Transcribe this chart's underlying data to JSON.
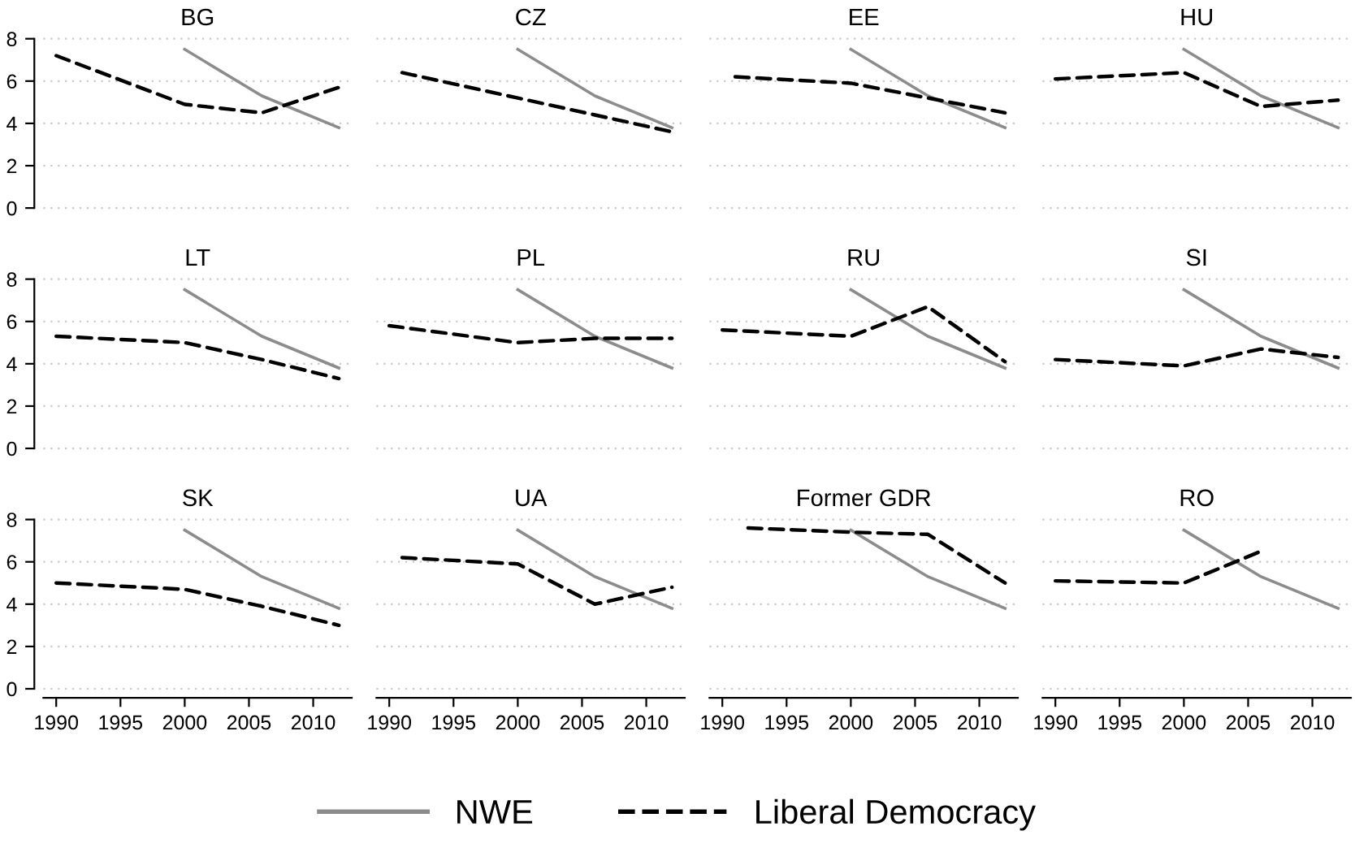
{
  "chart_data": [
    {
      "type": "line",
      "title": "BG",
      "xlim": [
        1989,
        2013
      ],
      "xticks": [
        1990,
        1995,
        2000,
        2005,
        2010
      ],
      "ylim": [
        0,
        8
      ],
      "yticks": [
        0,
        2,
        4,
        6,
        8
      ],
      "grid": "y",
      "tick_labels": "y",
      "legend": "bottom",
      "series": [
        {
          "name": "NWE",
          "color": "#8c8c8c",
          "line_style": "solid",
          "x": [
            2000,
            2006,
            2012
          ],
          "values": [
            7.5,
            5.3,
            3.8
          ]
        },
        {
          "name": "Liberal Democracy",
          "color": "#000000",
          "line_style": "dashed",
          "x": [
            1990,
            2000,
            2006,
            2012
          ],
          "values": [
            7.2,
            4.9,
            4.5,
            5.7
          ]
        }
      ]
    },
    {
      "type": "line",
      "title": "CZ",
      "xlim": [
        1989,
        2013
      ],
      "xticks": [
        1990,
        1995,
        2000,
        2005,
        2010
      ],
      "ylim": [
        0,
        8
      ],
      "yticks": [
        0,
        2,
        4,
        6,
        8
      ],
      "grid": "y",
      "tick_labels": false,
      "series": [
        {
          "color": "#8c8c8c",
          "line_style": "solid",
          "x": [
            2000,
            2006,
            2012
          ],
          "values": [
            7.5,
            5.3,
            3.8
          ]
        },
        {
          "color": "#000000",
          "line_style": "dashed",
          "x": [
            1991,
            2000,
            2006,
            2012
          ],
          "values": [
            6.4,
            5.2,
            4.4,
            3.6
          ]
        }
      ]
    },
    {
      "type": "line",
      "title": "EE",
      "xlim": [
        1989,
        2013
      ],
      "xticks": [
        1990,
        1995,
        2000,
        2005,
        2010
      ],
      "ylim": [
        0,
        8
      ],
      "yticks": [
        0,
        2,
        4,
        6,
        8
      ],
      "grid": "y",
      "tick_labels": false,
      "series": [
        {
          "color": "#8c8c8c",
          "line_style": "solid",
          "x": [
            2000,
            2006,
            2012
          ],
          "values": [
            7.5,
            5.3,
            3.8
          ]
        },
        {
          "color": "#000000",
          "line_style": "dashed",
          "x": [
            1991,
            2000,
            2006,
            2012
          ],
          "values": [
            6.2,
            5.9,
            5.2,
            4.5
          ]
        }
      ]
    },
    {
      "type": "line",
      "title": "HU",
      "xlim": [
        1989,
        2013
      ],
      "xticks": [
        1990,
        1995,
        2000,
        2005,
        2010
      ],
      "ylim": [
        0,
        8
      ],
      "yticks": [
        0,
        2,
        4,
        6,
        8
      ],
      "grid": "y",
      "tick_labels": false,
      "series": [
        {
          "color": "#8c8c8c",
          "line_style": "solid",
          "x": [
            2000,
            2006,
            2012
          ],
          "values": [
            7.5,
            5.3,
            3.8
          ]
        },
        {
          "color": "#000000",
          "line_style": "dashed",
          "x": [
            1990,
            2000,
            2006,
            2012
          ],
          "values": [
            6.1,
            6.4,
            4.8,
            5.1
          ]
        }
      ]
    },
    {
      "type": "line",
      "title": "LT",
      "xlim": [
        1989,
        2013
      ],
      "xticks": [
        1990,
        1995,
        2000,
        2005,
        2010
      ],
      "ylim": [
        0,
        8
      ],
      "yticks": [
        0,
        2,
        4,
        6,
        8
      ],
      "grid": "y",
      "tick_labels": "y",
      "series": [
        {
          "color": "#8c8c8c",
          "line_style": "solid",
          "x": [
            2000,
            2006,
            2012
          ],
          "values": [
            7.5,
            5.3,
            3.8
          ]
        },
        {
          "color": "#000000",
          "line_style": "dashed",
          "x": [
            1990,
            2000,
            2006,
            2012
          ],
          "values": [
            5.3,
            5.0,
            4.2,
            3.3
          ]
        }
      ]
    },
    {
      "type": "line",
      "title": "PL",
      "xlim": [
        1989,
        2013
      ],
      "xticks": [
        1990,
        1995,
        2000,
        2005,
        2010
      ],
      "ylim": [
        0,
        8
      ],
      "yticks": [
        0,
        2,
        4,
        6,
        8
      ],
      "grid": "y",
      "tick_labels": false,
      "series": [
        {
          "color": "#8c8c8c",
          "line_style": "solid",
          "x": [
            2000,
            2006,
            2012
          ],
          "values": [
            7.5,
            5.3,
            3.8
          ]
        },
        {
          "color": "#000000",
          "line_style": "dashed",
          "x": [
            1990,
            2000,
            2006,
            2012
          ],
          "values": [
            5.8,
            5.0,
            5.2,
            5.2
          ]
        }
      ]
    },
    {
      "type": "line",
      "title": "RU",
      "xlim": [
        1989,
        2013
      ],
      "xticks": [
        1990,
        1995,
        2000,
        2005,
        2010
      ],
      "ylim": [
        0,
        8
      ],
      "yticks": [
        0,
        2,
        4,
        6,
        8
      ],
      "grid": "y",
      "tick_labels": false,
      "series": [
        {
          "color": "#8c8c8c",
          "line_style": "solid",
          "x": [
            2000,
            2006,
            2012
          ],
          "values": [
            7.5,
            5.3,
            3.8
          ]
        },
        {
          "color": "#000000",
          "line_style": "dashed",
          "x": [
            1990,
            2000,
            2006,
            2012
          ],
          "values": [
            5.6,
            5.3,
            6.7,
            4.1
          ]
        }
      ]
    },
    {
      "type": "line",
      "title": "SI",
      "xlim": [
        1989,
        2013
      ],
      "xticks": [
        1990,
        1995,
        2000,
        2005,
        2010
      ],
      "ylim": [
        0,
        8
      ],
      "yticks": [
        0,
        2,
        4,
        6,
        8
      ],
      "grid": "y",
      "tick_labels": false,
      "series": [
        {
          "color": "#8c8c8c",
          "line_style": "solid",
          "x": [
            2000,
            2006,
            2012
          ],
          "values": [
            7.5,
            5.3,
            3.8
          ]
        },
        {
          "color": "#000000",
          "line_style": "dashed",
          "x": [
            1990,
            2000,
            2006,
            2012
          ],
          "values": [
            4.2,
            3.9,
            4.7,
            4.3
          ]
        }
      ]
    },
    {
      "type": "line",
      "title": "SK",
      "xlim": [
        1989,
        2013
      ],
      "xticks": [
        1990,
        1995,
        2000,
        2005,
        2010
      ],
      "ylim": [
        0,
        8
      ],
      "yticks": [
        0,
        2,
        4,
        6,
        8
      ],
      "grid": "y",
      "series": [
        {
          "color": "#8c8c8c",
          "line_style": "solid",
          "x": [
            2000,
            2006,
            2012
          ],
          "values": [
            7.5,
            5.3,
            3.8
          ]
        },
        {
          "color": "#000000",
          "line_style": "dashed",
          "x": [
            1990,
            2000,
            2006,
            2012
          ],
          "values": [
            5.0,
            4.7,
            3.9,
            3.0
          ]
        }
      ]
    },
    {
      "type": "line",
      "title": "UA",
      "xlim": [
        1989,
        2013
      ],
      "xticks": [
        1990,
        1995,
        2000,
        2005,
        2010
      ],
      "ylim": [
        0,
        8
      ],
      "yticks": [
        0,
        2,
        4,
        6,
        8
      ],
      "grid": "y",
      "tick_labels": "x",
      "series": [
        {
          "color": "#8c8c8c",
          "line_style": "solid",
          "x": [
            2000,
            2006,
            2012
          ],
          "values": [
            7.5,
            5.3,
            3.8
          ]
        },
        {
          "color": "#000000",
          "line_style": "dashed",
          "x": [
            1991,
            2000,
            2006,
            2012
          ],
          "values": [
            6.2,
            5.9,
            4.0,
            4.8
          ]
        }
      ]
    },
    {
      "type": "line",
      "title": "Former GDR",
      "xlim": [
        1989,
        2013
      ],
      "xticks": [
        1990,
        1995,
        2000,
        2005,
        2010
      ],
      "ylim": [
        0,
        8
      ],
      "yticks": [
        0,
        2,
        4,
        6,
        8
      ],
      "grid": "y",
      "tick_labels": "x",
      "series": [
        {
          "color": "#8c8c8c",
          "line_style": "solid",
          "x": [
            2000,
            2006,
            2012
          ],
          "values": [
            7.5,
            5.3,
            3.8
          ]
        },
        {
          "color": "#000000",
          "line_style": "dashed",
          "x": [
            1992,
            2000,
            2006,
            2012
          ],
          "values": [
            7.6,
            7.4,
            7.3,
            5.0
          ]
        }
      ]
    },
    {
      "type": "line",
      "title": "RO",
      "xlim": [
        1989,
        2013
      ],
      "xticks": [
        1990,
        1995,
        2000,
        2005,
        2010
      ],
      "ylim": [
        0,
        8
      ],
      "yticks": [
        0,
        2,
        4,
        6,
        8
      ],
      "grid": "y",
      "tick_labels": "x",
      "series": [
        {
          "color": "#8c8c8c",
          "line_style": "solid",
          "x": [
            2000,
            2006,
            2012
          ],
          "values": [
            7.5,
            5.3,
            3.8
          ]
        },
        {
          "color": "#000000",
          "line_style": "dashed",
          "x": [
            1990,
            2000,
            2006
          ],
          "values": [
            5.1,
            5.0,
            6.5
          ]
        }
      ]
    }
  ]
}
